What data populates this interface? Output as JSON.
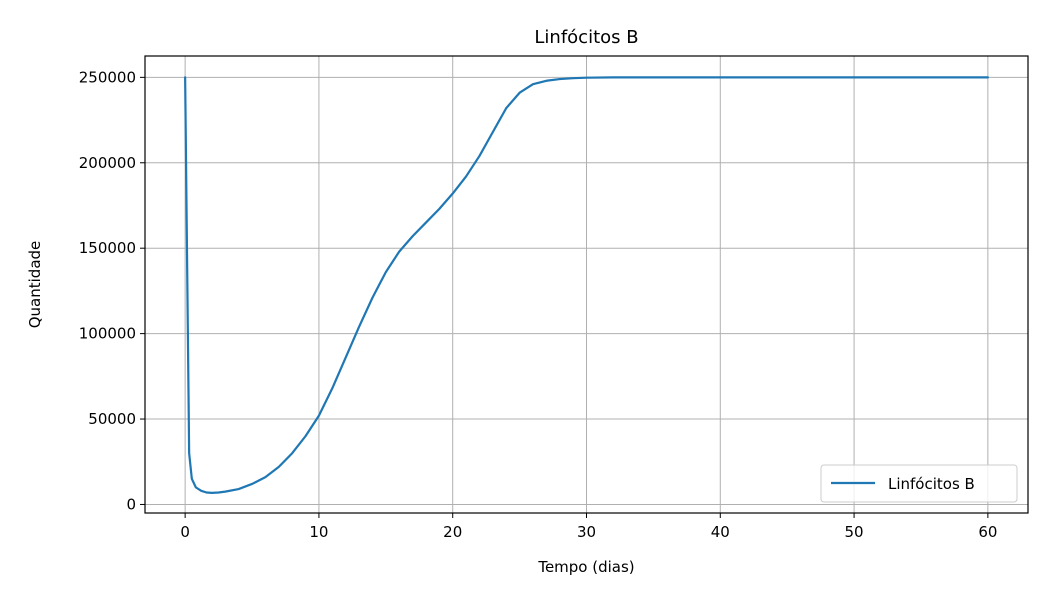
{
  "chart_data": {
    "type": "line",
    "title": "Linfócitos B",
    "xlabel": "Tempo (dias)",
    "ylabel": "Quantidade",
    "xlim": [
      -3,
      63
    ],
    "ylim": [
      -5000,
      262500
    ],
    "x_ticks": [
      0,
      10,
      20,
      30,
      40,
      50,
      60
    ],
    "y_ticks": [
      0,
      50000,
      100000,
      150000,
      200000,
      250000
    ],
    "x_tick_labels": [
      "0",
      "10",
      "20",
      "30",
      "40",
      "50",
      "60"
    ],
    "y_tick_labels": [
      "0",
      "50000",
      "100000",
      "150000",
      "200000",
      "250000"
    ],
    "grid": true,
    "legend_position": "bottom-right",
    "colors": {
      "series": "#1f77b4",
      "grid": "#b0b0b0"
    },
    "series": [
      {
        "name": "Linfócitos B",
        "x": [
          0,
          0.3,
          0.5,
          0.8,
          1.2,
          1.6,
          2,
          2.5,
          3,
          4,
          5,
          6,
          7,
          8,
          9,
          10,
          11,
          12,
          13,
          14,
          15,
          16,
          17,
          18,
          19,
          20,
          21,
          22,
          23,
          24,
          25,
          26,
          27,
          28,
          29,
          30,
          32,
          35,
          40,
          45,
          50,
          55,
          60
        ],
        "y": [
          250000,
          30000,
          15000,
          10000,
          8000,
          7000,
          6800,
          7000,
          7500,
          9000,
          12000,
          16000,
          22000,
          30000,
          40000,
          52000,
          68000,
          86000,
          104000,
          121000,
          136000,
          148000,
          157000,
          165000,
          173000,
          182000,
          192000,
          204000,
          218000,
          232000,
          241000,
          246000,
          248000,
          249000,
          249500,
          249800,
          250000,
          250000,
          250000,
          250000,
          250000,
          250000,
          250000
        ]
      }
    ]
  }
}
